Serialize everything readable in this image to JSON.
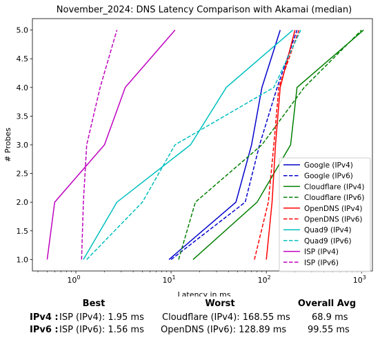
{
  "chart_data": {
    "type": "line",
    "title": "November_2024: DNS Latency Comparison with Akamai (median)",
    "xlabel": "Latency in ms",
    "ylabel": "# Probes",
    "xscale": "log",
    "xlim": [
      0.35,
      1300
    ],
    "ylim": [
      0.8,
      5.2
    ],
    "xticks": [
      1,
      10,
      100,
      1000
    ],
    "xtick_labels": [
      "10^0",
      "10^1",
      "10^2",
      "10^3"
    ],
    "yticks": [
      1.0,
      1.5,
      2.0,
      2.5,
      3.0,
      3.5,
      4.0,
      4.5,
      5.0
    ],
    "ytick_labels": [
      "1.0",
      "1.5",
      "2.0",
      "2.5",
      "3.0",
      "3.5",
      "4.0",
      "4.5",
      "5.0"
    ],
    "grid": false,
    "legend_position": "lower right",
    "series": [
      {
        "name": "Google (IPv4)",
        "color": "#0000cc",
        "dash": false,
        "x": [
          9.5,
          48,
          70,
          90,
          140
        ],
        "y": [
          1,
          2,
          3,
          4,
          5
        ]
      },
      {
        "name": "Google (IPv6)",
        "color": "#0000cc",
        "dash": true,
        "x": [
          10,
          60,
          85,
          130,
          210
        ],
        "y": [
          1,
          2,
          3,
          4,
          5
        ]
      },
      {
        "name": "Cloudflare (IPv4)",
        "color": "#007f00",
        "dash": false,
        "x": [
          17,
          80,
          180,
          210,
          1050
        ],
        "y": [
          1,
          2,
          3,
          4,
          5
        ]
      },
      {
        "name": "Cloudflare (IPv6)",
        "color": "#007f00",
        "dash": true,
        "x": [
          12,
          18,
          90,
          250,
          1000
        ],
        "y": [
          1,
          2,
          3,
          4,
          5
        ]
      },
      {
        "name": "OpenDNS (IPv4)",
        "color": "#ff0000",
        "dash": false,
        "x": [
          100,
          115,
          125,
          140,
          200
        ],
        "y": [
          1,
          2,
          3,
          4,
          5
        ]
      },
      {
        "name": "OpenDNS (IPv6)",
        "color": "#ff0000",
        "dash": true,
        "x": [
          75,
          105,
          120,
          135,
          220
        ],
        "y": [
          1,
          2,
          3,
          4,
          5
        ]
      },
      {
        "name": "Quad9 (IPv4)",
        "color": "#00bfbf",
        "dash": false,
        "x": [
          1.2,
          2.7,
          16,
          38,
          190
        ],
        "y": [
          1,
          2,
          3,
          4,
          5
        ]
      },
      {
        "name": "Quad9 (IPv6)",
        "color": "#00bfbf",
        "dash": true,
        "x": [
          1.3,
          5,
          11,
          120,
          230
        ],
        "y": [
          1,
          2,
          3,
          4,
          5
        ]
      },
      {
        "name": "ISP (IPv4)",
        "color": "#bf00bf",
        "dash": false,
        "x": [
          0.5,
          0.6,
          2,
          3.3,
          11
        ],
        "y": [
          1,
          2,
          3,
          4,
          5
        ]
      },
      {
        "name": "ISP (IPv6)",
        "color": "#bf00bf",
        "dash": true,
        "x": [
          1.15,
          1.2,
          1.3,
          1.8,
          2.7
        ],
        "y": [
          1,
          2,
          3,
          4,
          5
        ]
      }
    ]
  },
  "summary": {
    "headers": {
      "best": "Best",
      "worst": "Worst",
      "avg": "Overall Avg"
    },
    "rows": [
      {
        "label": "IPv4 :",
        "best": "ISP (IPv4): 1.95 ms",
        "worst": "Cloudflare (IPv4): 168.55 ms",
        "avg": "68.9 ms"
      },
      {
        "label": "IPv6 :",
        "best": "ISP (IPv6): 1.56 ms",
        "worst": "OpenDNS (IPv6): 128.89 ms",
        "avg": "99.55 ms"
      }
    ]
  }
}
